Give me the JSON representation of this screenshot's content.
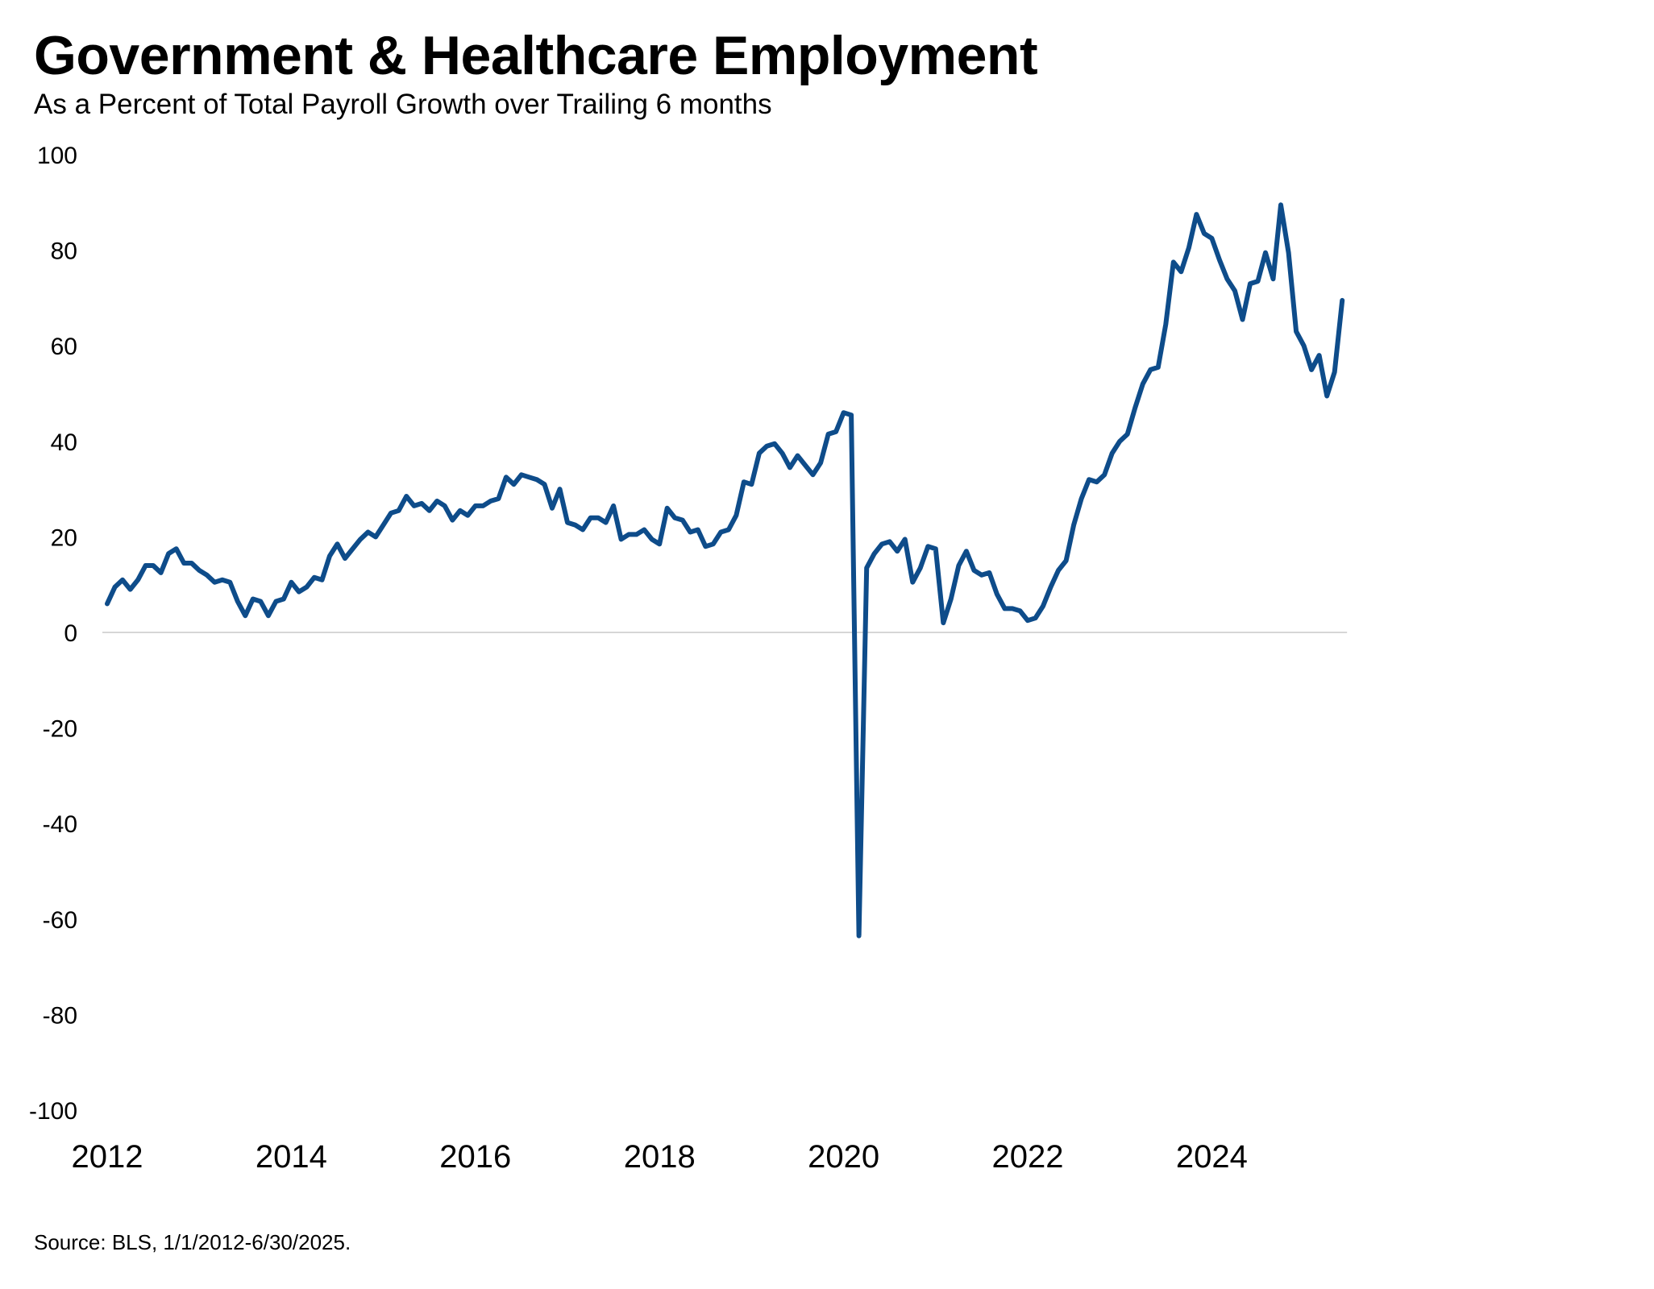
{
  "chart_data": {
    "type": "line",
    "title": "Government & Healthcare Employment",
    "subtitle": "As a Percent of Total Payroll Growth over Trailing 6 months",
    "source": "Source: BLS, 1/1/2012-6/30/2025.",
    "xlabel": "",
    "ylabel": "",
    "ylim": [
      -100,
      100
    ],
    "yticks": [
      "100",
      "80",
      "60",
      "40",
      "20",
      "0",
      "-20",
      "-40",
      "-60",
      "-80",
      "-100"
    ],
    "xticks": [
      "2012",
      "2014",
      "2016",
      "2018",
      "2020",
      "2022",
      "2024"
    ],
    "grid": false,
    "legend": "none",
    "line_color": "#0e4c8a",
    "zero_line_color": "#d6d6d6",
    "series": [
      {
        "x_start": "2012-01",
        "frequency": "monthly",
        "values": [
          6,
          9.5,
          11,
          9,
          11,
          14,
          14,
          12.5,
          16.5,
          17.5,
          14.5,
          14.5,
          13,
          12,
          10.5,
          11,
          10.5,
          6.5,
          3.5,
          7,
          6.5,
          3.5,
          6.5,
          7,
          10.5,
          8.5,
          9.5,
          11.5,
          11,
          16,
          18.5,
          15.5,
          17.5,
          19.5,
          21,
          20,
          22.5,
          25,
          25.5,
          28.5,
          26.5,
          27,
          25.5,
          27.5,
          26.5,
          23.5,
          25.5,
          24.5,
          26.5,
          26.5,
          27.5,
          28,
          32.5,
          31,
          33,
          32.5,
          32,
          31,
          26,
          30,
          23,
          22.5,
          21.5,
          24,
          24,
          23,
          26.5,
          19.5,
          20.5,
          20.5,
          21.5,
          19.5,
          18.5,
          26,
          24,
          23.5,
          21,
          21.5,
          18,
          18.5,
          21,
          21.5,
          24.5,
          31.5,
          31,
          37.5,
          39,
          39.5,
          37.5,
          34.5,
          37,
          35,
          33,
          35.5,
          41.5,
          42,
          46,
          45.5,
          -63.5,
          13.5,
          16.5,
          18.5,
          19,
          17,
          19.5,
          10.5,
          13.5,
          18,
          17.5,
          2,
          7,
          14,
          17,
          13,
          12,
          12.5,
          8,
          5,
          5,
          4.5,
          2.5,
          3,
          5.5,
          9.5,
          13,
          15,
          22.5,
          28,
          32,
          31.5,
          33,
          37.5,
          40,
          41.5,
          47,
          52,
          55,
          55.5,
          64.5,
          77.5,
          75.5,
          80.5,
          87.5,
          83.5,
          82.5,
          78,
          74,
          71.5,
          65.5,
          73,
          73.5,
          79.5,
          74,
          89.5,
          79.5,
          63,
          60,
          55,
          58,
          49.5,
          54.5,
          69.5
        ]
      }
    ]
  }
}
